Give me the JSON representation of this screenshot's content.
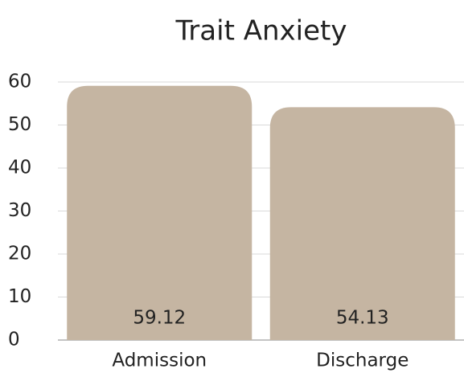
{
  "chart_data": {
    "type": "bar",
    "title": "Trait Anxiety",
    "categories": [
      "Admission",
      "Discharge"
    ],
    "values": [
      59.12,
      54.13
    ],
    "color": "#c5b5a2",
    "ylim": [
      0,
      60
    ],
    "yticks": [
      0,
      10,
      20,
      30,
      40,
      50,
      60
    ],
    "grid": true
  }
}
